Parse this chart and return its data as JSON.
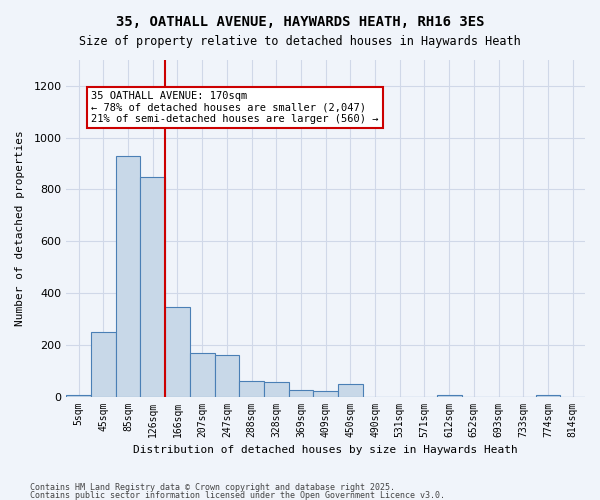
{
  "title_line1": "35, OATHALL AVENUE, HAYWARDS HEATH, RH16 3ES",
  "title_line2": "Size of property relative to detached houses in Haywards Heath",
  "xlabel": "Distribution of detached houses by size in Haywards Heath",
  "ylabel": "Number of detached properties",
  "categories": [
    "5sqm",
    "45sqm",
    "85sqm",
    "126sqm",
    "166sqm",
    "207sqm",
    "247sqm",
    "288sqm",
    "328sqm",
    "369sqm",
    "409sqm",
    "450sqm",
    "490sqm",
    "531sqm",
    "571sqm",
    "612sqm",
    "652sqm",
    "693sqm",
    "733sqm",
    "774sqm",
    "814sqm"
  ],
  "values": [
    5,
    248,
    930,
    848,
    345,
    167,
    162,
    60,
    55,
    25,
    22,
    50,
    0,
    0,
    0,
    5,
    0,
    0,
    0,
    5,
    0
  ],
  "bar_color": "#c8d8e8",
  "bar_edge_color": "#4a7fb5",
  "vline_x": 4,
  "vline_color": "#cc0000",
  "annotation_text": "35 OATHALL AVENUE: 170sqm\n← 78% of detached houses are smaller (2,047)\n21% of semi-detached houses are larger (560) →",
  "annotation_box_color": "#ffffff",
  "annotation_box_edge": "#cc0000",
  "ylim": [
    0,
    1300
  ],
  "yticks": [
    0,
    200,
    400,
    600,
    800,
    1000,
    1200
  ],
  "grid_color": "#d0d8e8",
  "footnote1": "Contains HM Land Registry data © Crown copyright and database right 2025.",
  "footnote2": "Contains public sector information licensed under the Open Government Licence v3.0.",
  "bg_color": "#f0f4fa"
}
